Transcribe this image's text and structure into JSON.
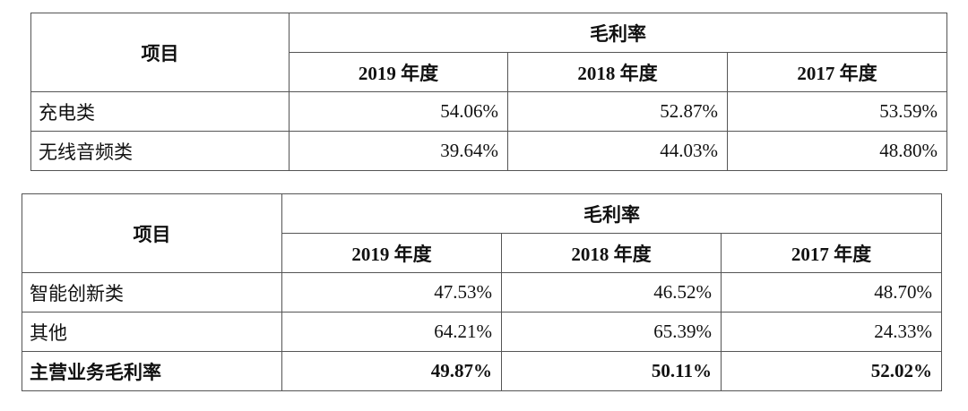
{
  "table1": {
    "item_header": "项目",
    "group_header": "毛利率",
    "years": [
      "2019 年度",
      "2018 年度",
      "2017 年度"
    ],
    "rows": [
      {
        "label": "充电类",
        "values": [
          "54.06%",
          "52.87%",
          "53.59%"
        ]
      },
      {
        "label": "无线音频类",
        "values": [
          "39.64%",
          "44.03%",
          "48.80%"
        ]
      }
    ]
  },
  "table2": {
    "item_header": "项目",
    "group_header": "毛利率",
    "years": [
      "2019 年度",
      "2018 年度",
      "2017 年度"
    ],
    "rows": [
      {
        "label": "智能创新类",
        "values": [
          "47.53%",
          "46.52%",
          "48.70%"
        ]
      },
      {
        "label": "其他",
        "values": [
          "64.21%",
          "65.39%",
          "24.33%"
        ]
      },
      {
        "label": "主营业务毛利率",
        "values": [
          "49.87%",
          "50.11%",
          "52.02%"
        ],
        "bold": true
      }
    ]
  }
}
